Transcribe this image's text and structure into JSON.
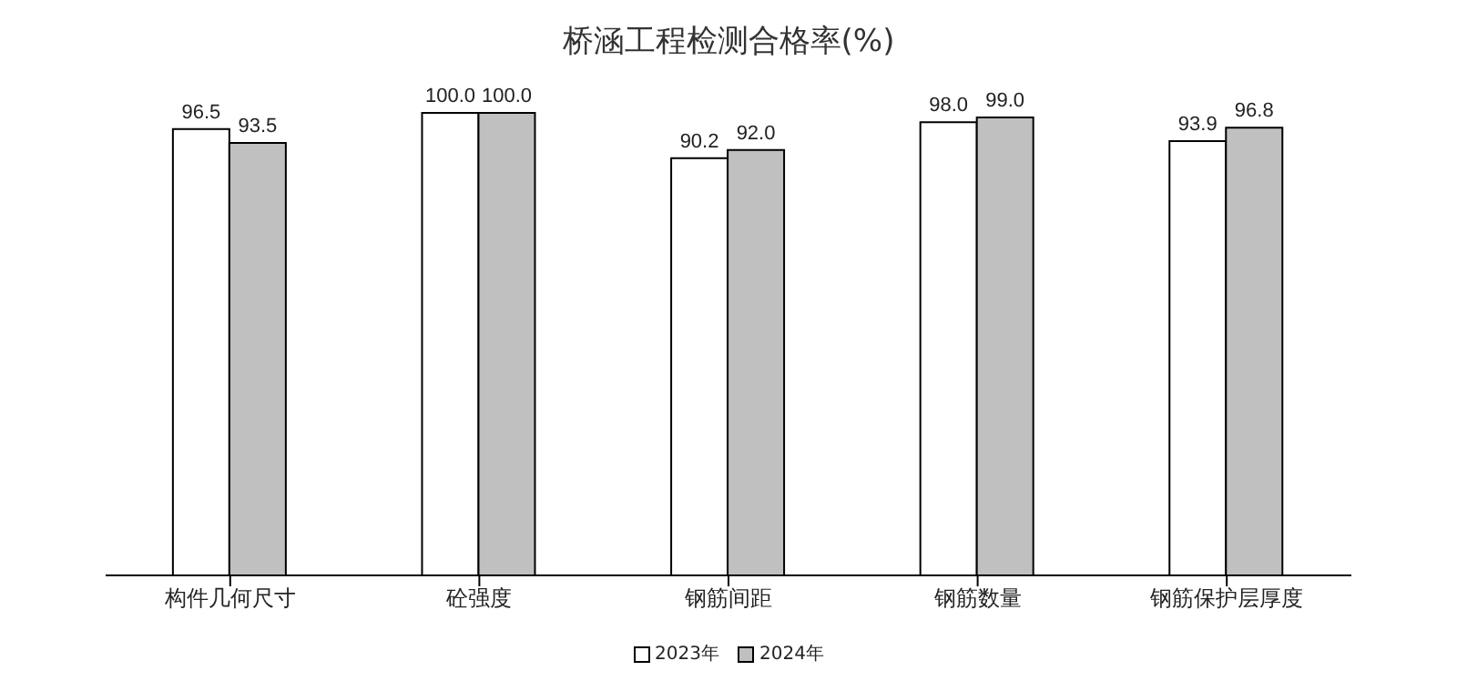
{
  "chart_data": {
    "type": "bar",
    "title": "桥涵工程检测合格率(%)",
    "categories": [
      "构件几何尺寸",
      "砼强度",
      "钢筋间距",
      "钢筋数量",
      "钢筋保护层厚度"
    ],
    "series": [
      {
        "name": "2023年",
        "color": "#ffffff",
        "values": [
          96.5,
          100.0,
          90.2,
          98.0,
          93.9
        ],
        "value_labels": [
          "96.5",
          "100.0",
          "90.2",
          "98.0",
          "93.9"
        ]
      },
      {
        "name": "2024年",
        "color": "#c0c0c0",
        "values": [
          93.5,
          100.0,
          92.0,
          99.0,
          96.8
        ],
        "value_labels": [
          "93.5",
          "100.0",
          "92.0",
          "99.0",
          "96.8"
        ]
      }
    ],
    "legend": "bottom",
    "grid": false
  }
}
